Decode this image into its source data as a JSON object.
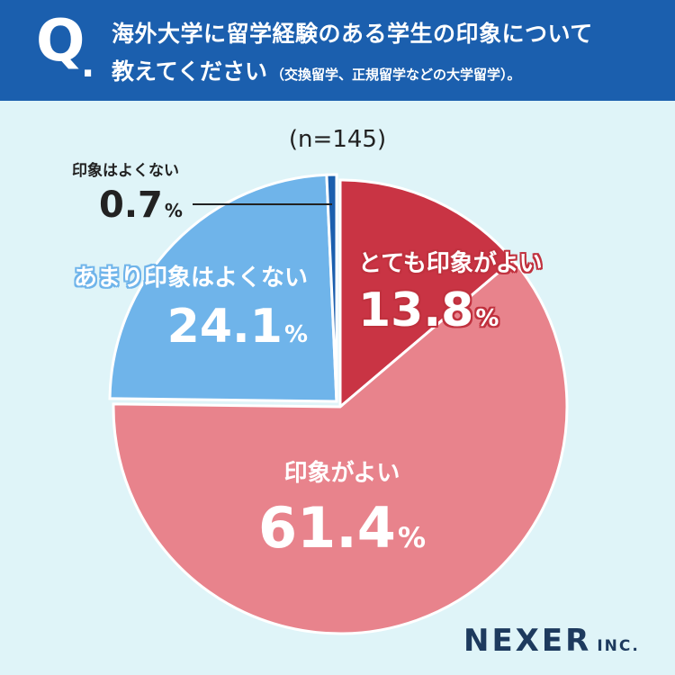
{
  "header": {
    "q_mark": "Q",
    "q_dot": ".",
    "question_line1": "海外大学に留学経験のある学生の印象について",
    "question_line2": "教えてください",
    "question_note": "（交換留学、正規留学などの大学留学）。"
  },
  "sample_size": "(n=145)",
  "chart_data": {
    "type": "pie",
    "total_n": 145,
    "unit": "%",
    "slices": [
      {
        "label": "とても印象がよい",
        "value": 13.8,
        "color": "#c93444"
      },
      {
        "label": "印象がよい",
        "value": 61.4,
        "color": "#e8838c"
      },
      {
        "label": "あまり印象はよくない",
        "value": 24.1,
        "color": "#6fb4ea"
      },
      {
        "label": "印象はよくない",
        "value": 0.7,
        "color": "#1b5fae"
      }
    ]
  },
  "labels": {
    "very_good": {
      "category": "とても印象がよい",
      "value": "13.8",
      "unit": "%"
    },
    "good": {
      "category": "印象がよい",
      "value": "61.4",
      "unit": "%"
    },
    "not_very_good": {
      "category": "あまり印象はよくない",
      "value": "24.1",
      "unit": "%"
    },
    "not_good": {
      "category": "印象はよくない",
      "value": "0.7",
      "unit": "%"
    }
  },
  "brand": {
    "name": "NEXER",
    "suffix": "INC."
  }
}
